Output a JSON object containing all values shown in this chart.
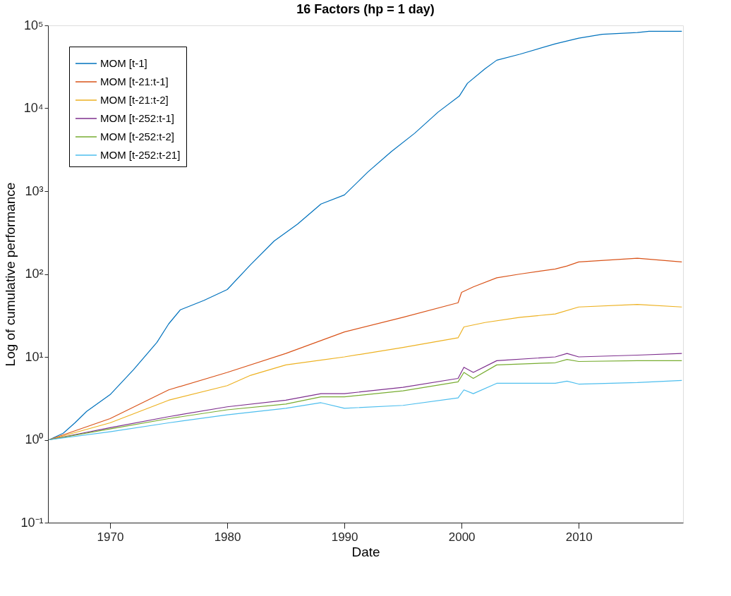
{
  "chart_data": {
    "type": "line",
    "title": "16 Factors (hp = 1 day)",
    "xlabel": "Date",
    "ylabel": "Log of cumulative performance",
    "log": "y",
    "grid": false,
    "legend": "top left",
    "line_style": "solid",
    "marker": "none",
    "xlim": [
      1964.7,
      2018.9
    ],
    "xticks": [
      1970,
      1980,
      1990,
      2000,
      2010
    ],
    "ylim": [
      0.1,
      100000
    ],
    "yticks": [
      {
        "value": 0.1,
        "label": "10⁻¹"
      },
      {
        "value": 1,
        "label": "10⁰"
      },
      {
        "value": 10,
        "label": "10¹"
      },
      {
        "value": 100,
        "label": "10²"
      },
      {
        "value": 1000,
        "label": "10³"
      },
      {
        "value": 10000,
        "label": "10⁴"
      },
      {
        "value": 100000,
        "label": "10⁵"
      }
    ],
    "series": [
      {
        "name": "MOM [t-1]",
        "color": "#0072bd",
        "x": [
          1964.8,
          1966,
          1967,
          1968,
          1970,
          1972,
          1974,
          1975,
          1976,
          1978,
          1980,
          1982,
          1984,
          1986,
          1988,
          1990,
          1992,
          1994,
          1996,
          1998,
          1999.8,
          2000.5,
          2002,
          2003,
          2005,
          2008,
          2010,
          2012,
          2015,
          2016,
          2018.8
        ],
        "values": [
          1,
          1.2,
          1.6,
          2.2,
          3.5,
          7,
          15,
          25,
          37,
          48,
          65,
          130,
          250,
          400,
          700,
          900,
          1700,
          3000,
          5000,
          9000,
          14000,
          20000,
          30000,
          38000,
          45000,
          60000,
          70000,
          78000,
          82000,
          85000,
          85000
        ]
      },
      {
        "name": "MOM [t-21:t-1]",
        "color": "#d95319",
        "x": [
          1964.8,
          1970,
          1975,
          1980,
          1985,
          1990,
          1995,
          1999.7,
          2000,
          2001,
          2003,
          2005,
          2008,
          2009,
          2010,
          2015,
          2018.8
        ],
        "values": [
          1,
          1.8,
          4,
          6.5,
          11,
          20,
          30,
          45,
          60,
          70,
          90,
          100,
          115,
          125,
          140,
          155,
          140
        ]
      },
      {
        "name": "MOM [t-21:t-2]",
        "color": "#edb120",
        "x": [
          1964.8,
          1970,
          1975,
          1980,
          1982,
          1985,
          1990,
          1995,
          1999.7,
          2000.2,
          2002,
          2005,
          2008,
          2010,
          2015,
          2018.8
        ],
        "values": [
          1,
          1.6,
          3,
          4.5,
          6,
          8,
          10,
          13,
          17,
          23,
          26,
          30,
          33,
          40,
          43,
          40
        ]
      },
      {
        "name": "MOM [t-252:t-1]",
        "color": "#7e2f8e",
        "x": [
          1964.8,
          1970,
          1975,
          1980,
          1985,
          1988,
          1990,
          1995,
          1999.7,
          2000.2,
          2001,
          2003,
          2008,
          2009,
          2010,
          2015,
          2018.8
        ],
        "values": [
          1,
          1.4,
          1.9,
          2.5,
          3,
          3.6,
          3.6,
          4.3,
          5.5,
          7.5,
          6.5,
          9,
          10,
          11,
          10,
          10.5,
          11
        ]
      },
      {
        "name": "MOM [t-252:t-2]",
        "color": "#77ac30",
        "x": [
          1964.8,
          1970,
          1975,
          1980,
          1985,
          1988,
          1990,
          1995,
          1999.7,
          2000.2,
          2001,
          2003,
          2008,
          2009,
          2010,
          2015,
          2018.8
        ],
        "values": [
          1,
          1.35,
          1.8,
          2.3,
          2.7,
          3.3,
          3.3,
          3.9,
          5,
          6.5,
          5.5,
          8,
          8.5,
          9.3,
          8.8,
          9,
          9
        ]
      },
      {
        "name": "MOM [t-252:t-21]",
        "color": "#4dbeee",
        "x": [
          1964.8,
          1970,
          1975,
          1980,
          1985,
          1988,
          1990,
          1995,
          1999.7,
          2000.2,
          2001,
          2003,
          2008,
          2009,
          2010,
          2015,
          2018.8
        ],
        "values": [
          1,
          1.25,
          1.6,
          2,
          2.4,
          2.8,
          2.4,
          2.6,
          3.2,
          4,
          3.6,
          4.8,
          4.8,
          5.1,
          4.7,
          4.9,
          5.2
        ]
      }
    ]
  }
}
